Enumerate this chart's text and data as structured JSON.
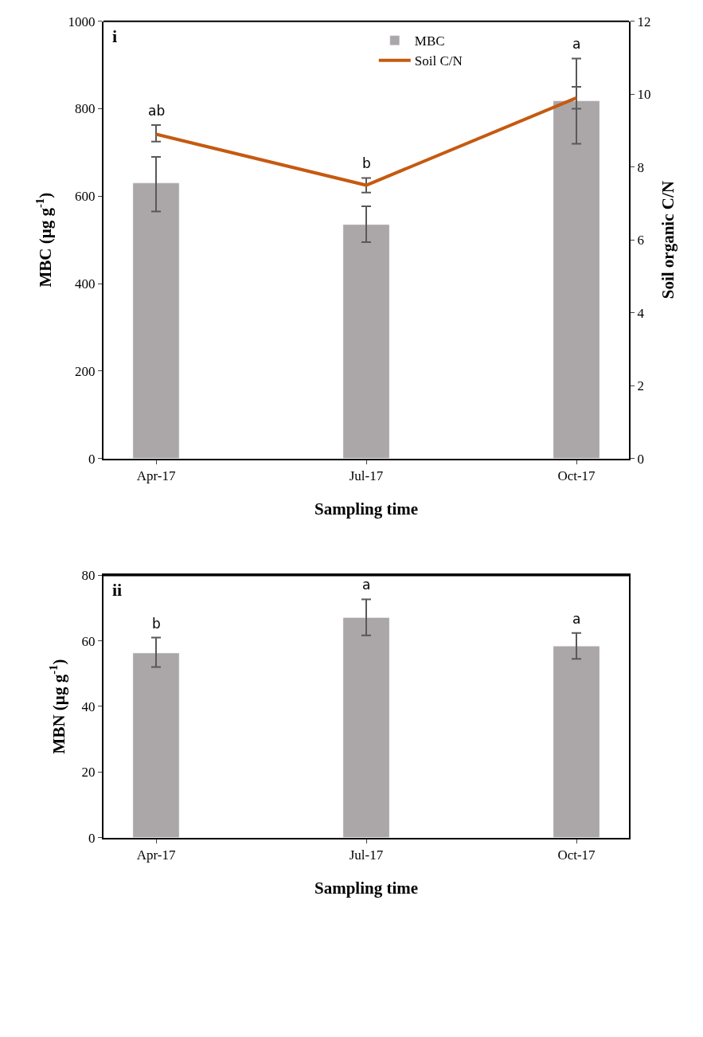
{
  "chart_data": [
    {
      "type": "bar",
      "categories": [
        "Apr-17",
        "Jul-17",
        "Oct-17"
      ],
      "xlabel": "Sampling time",
      "ylabel": "MBC (µg g$^{-1}$)",
      "y2label": "Soil organic C/N",
      "ylim": [
        0,
        1000
      ],
      "yticks": [
        0,
        200,
        400,
        600,
        800,
        1000
      ],
      "y2lim": [
        0,
        12
      ],
      "y2ticks": [
        0,
        2,
        4,
        6,
        8,
        10,
        12
      ],
      "legend": "top",
      "series": [
        {
          "name": "MBC",
          "color": "#aba6a7",
          "values": [
            630,
            535,
            818
          ],
          "errors": [
            [
              565,
              690
            ],
            [
              495,
              577
            ],
            [
              720,
              915
            ]
          ]
        },
        {
          "name": "Soil C/N",
          "type": "line",
          "axis": "y2",
          "color": "#c55a11",
          "marker": "none",
          "line_style": "solid",
          "values": [
            8.9,
            7.5,
            9.9
          ],
          "errors": [
            [
              8.7,
              9.15
            ],
            [
              7.3,
              7.7
            ],
            [
              9.6,
              10.2
            ]
          ]
        }
      ],
      "annotations": [
        "i",
        "ab",
        "b",
        "a"
      ]
    },
    {
      "type": "bar",
      "categories": [
        "Apr-17",
        "Jul-17",
        "Oct-17"
      ],
      "xlabel": "Sampling time",
      "ylabel": "MBN (µg g$^{-1}$)",
      "ylim": [
        0,
        80
      ],
      "yticks": [
        0,
        20,
        40,
        60,
        80
      ],
      "legend": false,
      "series": [
        {
          "type": "bar",
          "color": "#aba6a7",
          "values": [
            56.3,
            67.1,
            58.4
          ],
          "errors": [
            [
              52,
              61
            ],
            [
              61.7,
              72.7
            ],
            [
              54.5,
              62.4
            ]
          ]
        }
      ],
      "annotations": [
        "ii",
        "b",
        "a",
        "a"
      ]
    }
  ]
}
